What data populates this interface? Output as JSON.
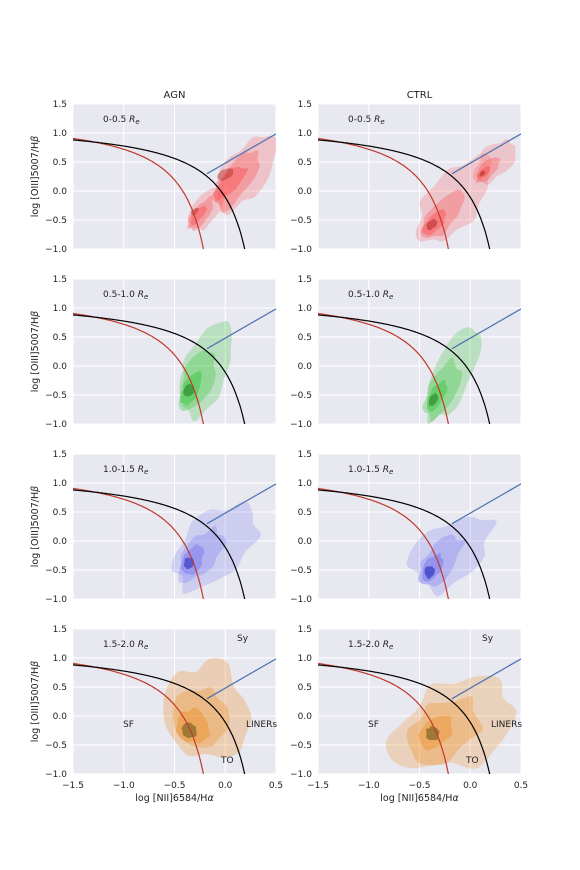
{
  "chart_data": {
    "type": "kde-contour",
    "column_titles": [
      "AGN",
      "CTRL"
    ],
    "row_labels": [
      "0-0.5",
      "0.5-1.0",
      "1.0-1.5",
      "1.5-2.0"
    ],
    "row_label_unit": "R",
    "row_label_unit_sub": "e",
    "xlabel_prefix": "log [NII]6584/H",
    "xlabel_greek": "α",
    "ylabel_prefix": "log [OIII]5007/H",
    "ylabel_greek": "β",
    "xlim": [
      -1.5,
      0.5
    ],
    "ylim": [
      -1.0,
      1.5
    ],
    "xticks": [
      -1.5,
      -1.0,
      -0.5,
      0.0,
      0.5
    ],
    "xtick_labels": [
      "−1.5",
      "−1.0",
      "−0.5",
      "0.0",
      "0.5"
    ],
    "yticks": [
      -1.0,
      -0.5,
      0.0,
      0.5,
      1.0,
      1.5
    ],
    "ytick_labels": [
      "−1.0",
      "−0.5",
      "0.0",
      "0.5",
      "1.0",
      "1.5"
    ],
    "grid": true,
    "colors": {
      "background": "#e8e8f0",
      "grid": "#ffffff",
      "kauffmann": "#c0392b",
      "kewley": "#000000",
      "seyfert_liner": "#4c72b0",
      "rows": [
        "#ff3b3b",
        "#2ec42e",
        "#6666ee",
        "#ee8a1a"
      ],
      "core": [
        "#b02a22",
        "#1f7a1f",
        "#2727b8",
        "#6b5a1a"
      ]
    },
    "region_labels": {
      "sy": "Sy",
      "sf": "SF",
      "liners": "LINERs",
      "to": "TO"
    },
    "curves": {
      "kauffmann_2003": "0.61/(x-0.05)+1.3",
      "kewley_2001": "0.61/(x-0.47)+1.19",
      "seyfert_liner_line": "1.01x+0.48"
    },
    "density_peaks": {
      "AGN": [
        [
          {
            "x": 0.0,
            "y": 0.28
          },
          {
            "x": -0.3,
            "y": -0.35
          }
        ],
        [
          {
            "x": -0.36,
            "y": -0.42
          }
        ],
        [
          {
            "x": -0.36,
            "y": -0.35
          }
        ],
        [
          {
            "x": -0.35,
            "y": -0.25
          }
        ]
      ],
      "CTRL": [
        [
          {
            "x": -0.38,
            "y": -0.58
          },
          {
            "x": 0.12,
            "y": 0.3
          }
        ],
        [
          {
            "x": -0.36,
            "y": -0.58
          }
        ],
        [
          {
            "x": -0.4,
            "y": -0.5
          }
        ],
        [
          {
            "x": -0.37,
            "y": -0.3
          }
        ]
      ]
    }
  }
}
